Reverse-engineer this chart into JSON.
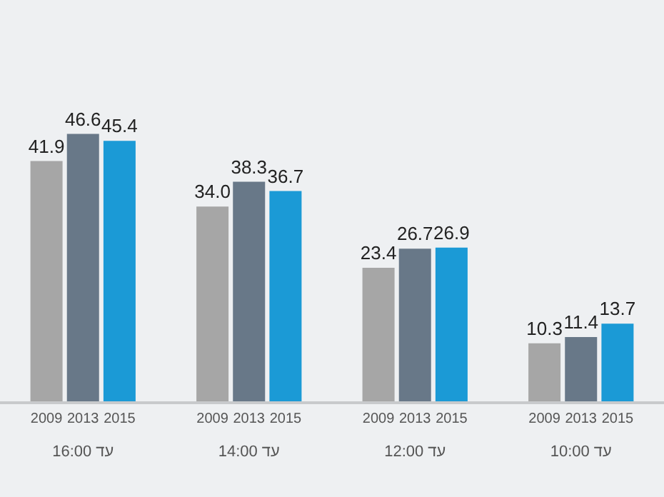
{
  "chart_data": {
    "type": "bar",
    "categories": [
      "עד 16:00",
      "עד 14:00",
      "עד 12:00",
      "עד 10:00"
    ],
    "series": [
      {
        "name": "2009",
        "color": "#a6a6a6",
        "values": [
          41.9,
          34.0,
          23.4,
          10.3
        ],
        "value_labels": [
          "41.9",
          "34.0",
          "23.4",
          "10.3"
        ]
      },
      {
        "name": "2013",
        "color": "#687888",
        "values": [
          46.6,
          38.3,
          26.7,
          11.4
        ],
        "value_labels": [
          "46.6",
          "38.3",
          "26.7",
          "11.4"
        ]
      },
      {
        "name": "2015",
        "color": "#1b9ad6",
        "values": [
          45.4,
          36.7,
          26.9,
          13.7
        ],
        "value_labels": [
          "45.4",
          "36.7",
          "26.9",
          "13.7"
        ]
      }
    ],
    "legend": false,
    "grid": false
  }
}
